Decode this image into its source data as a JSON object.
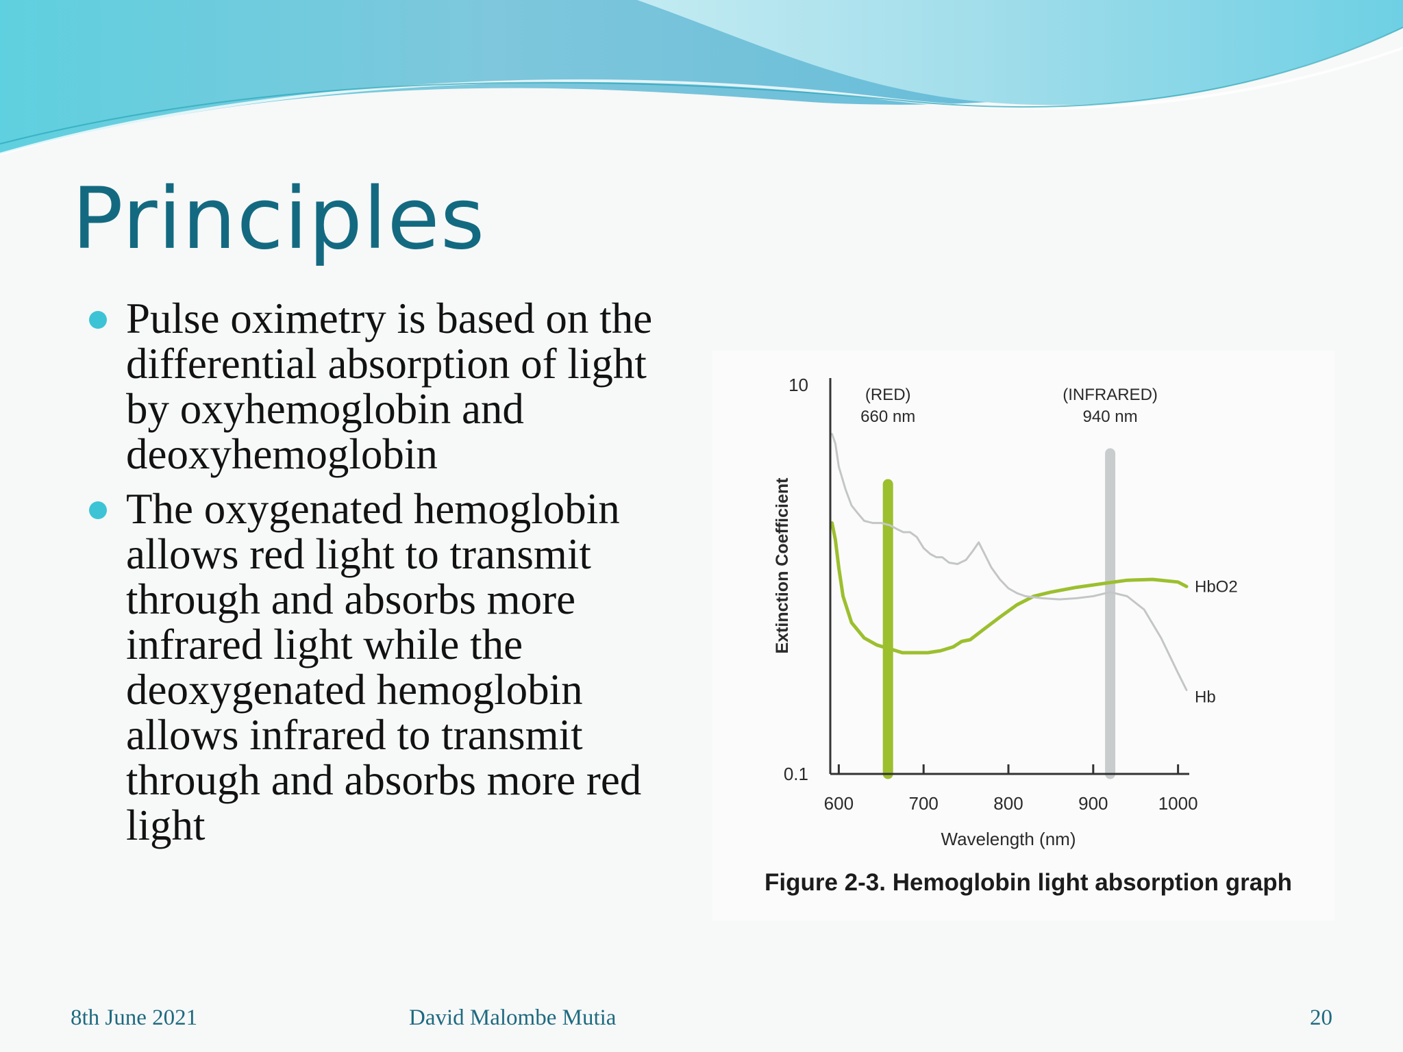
{
  "slide": {
    "title": "Principles",
    "bullets": [
      "Pulse oximetry is based on the differential absorption of light by oxyhemoglobin and deoxyhemoglobin",
      "The oxygenated hemoglobin allows red light to transmit through and absorbs more infrared light while the deoxygenated hemoglobin allows infrared to transmit through and absorbs more red light"
    ],
    "footer": {
      "date": "8th June 2021",
      "author": "David Malombe Mutia",
      "page": "20"
    }
  },
  "colors": {
    "title": "#136a80",
    "bullet_dot": "#3cc4d6",
    "hbo2": "#9cbf2e",
    "hb": "#c4c6c6",
    "red_band": "#9cbf2e",
    "infrared_band": "#c9cccc"
  },
  "chart_data": {
    "type": "line",
    "title": "Figure 2-3. Hemoglobin light absorption graph",
    "xlabel": "Wavelength (nm)",
    "ylabel": "Extinction Coefficient",
    "xlim": [
      590,
      1010
    ],
    "ylim": [
      0.1,
      10
    ],
    "yscale": "log",
    "x_ticks": [
      600,
      700,
      800,
      900,
      1000
    ],
    "y_ticks": [
      "10",
      "0.1"
    ],
    "y_tick_values": [
      10,
      0.1
    ],
    "bands": [
      {
        "label": "(RED)",
        "sublabel": "660 nm",
        "x": 658
      },
      {
        "label": "(INFRARED)",
        "sublabel": "940 nm",
        "x": 920
      }
    ],
    "series": [
      {
        "name": "HbO2",
        "x": [
          592,
          596,
          600,
          605,
          615,
          630,
          645,
          660,
          675,
          690,
          705,
          720,
          735,
          745,
          755,
          770,
          790,
          810,
          830,
          850,
          880,
          910,
          940,
          970,
          1000,
          1010
        ],
        "y": [
          1.95,
          1.6,
          1.15,
          0.82,
          0.6,
          0.5,
          0.46,
          0.44,
          0.42,
          0.42,
          0.42,
          0.43,
          0.45,
          0.48,
          0.49,
          0.55,
          0.64,
          0.74,
          0.82,
          0.86,
          0.91,
          0.95,
          0.99,
          1.0,
          0.97,
          0.92
        ]
      },
      {
        "name": "Hb",
        "x": [
          592,
          596,
          600,
          608,
          615,
          622,
          630,
          640,
          650,
          660,
          668,
          676,
          684,
          692,
          700,
          708,
          715,
          722,
          730,
          740,
          750,
          758,
          765,
          772,
          780,
          790,
          800,
          810,
          820,
          840,
          860,
          880,
          900,
          920,
          940,
          960,
          980,
          1000,
          1010
        ],
        "y": [
          5.6,
          5.0,
          3.8,
          2.9,
          2.4,
          2.2,
          2.0,
          1.95,
          1.95,
          1.9,
          1.82,
          1.75,
          1.75,
          1.65,
          1.45,
          1.35,
          1.3,
          1.3,
          1.22,
          1.2,
          1.26,
          1.4,
          1.55,
          1.35,
          1.15,
          1.0,
          0.9,
          0.85,
          0.82,
          0.8,
          0.79,
          0.8,
          0.82,
          0.86,
          0.82,
          0.7,
          0.5,
          0.33,
          0.27
        ]
      }
    ]
  }
}
